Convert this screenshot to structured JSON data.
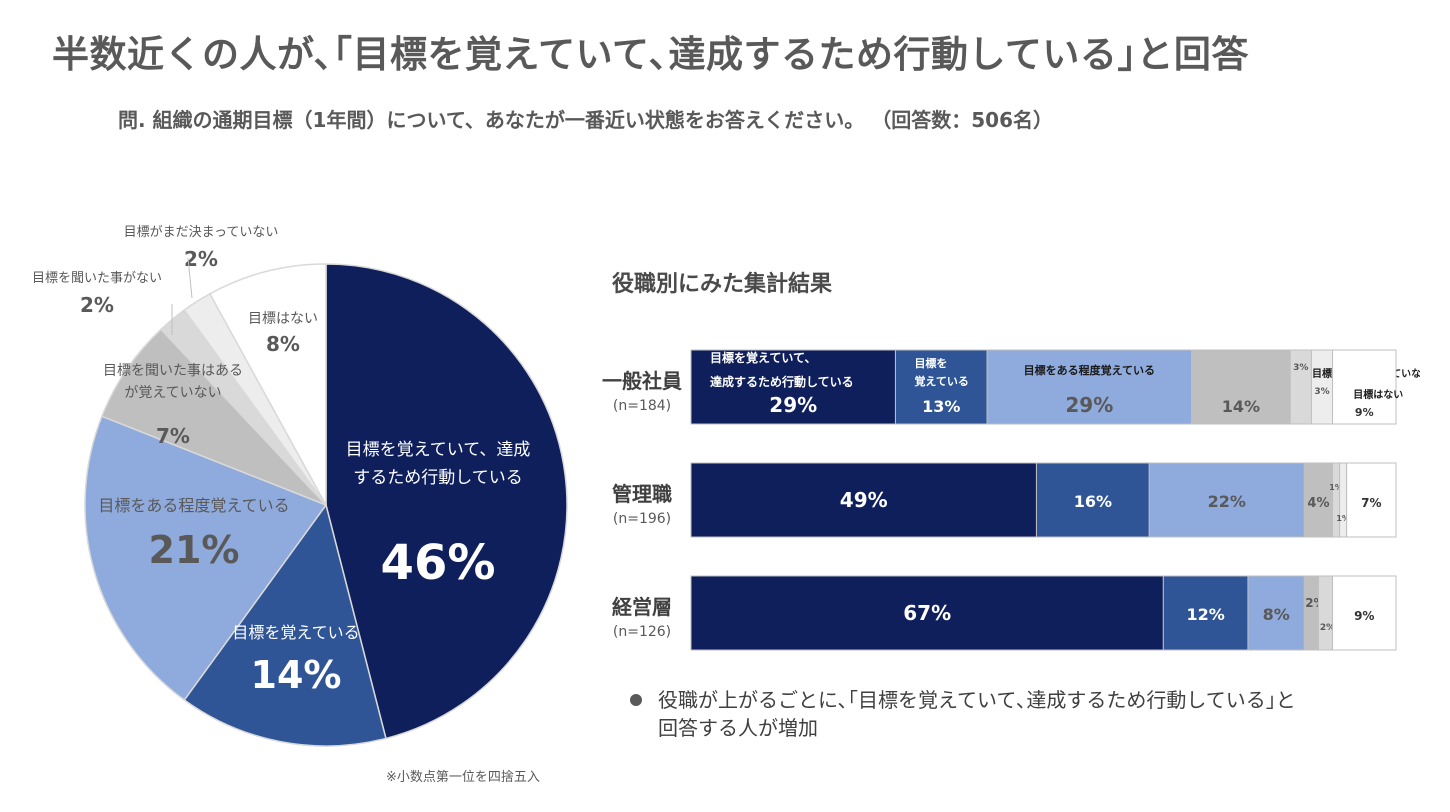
{
  "header": {
    "title": "半数近くの人が､｢目標を覚えていて､達成するため行動している｣と回答",
    "question": "問. 組織の通期目標（1年間）について、あなたが一番近い状態をお答えください。 （回答数：506名）"
  },
  "bar_section_title": "役職別にみた集計結果",
  "footnote": "※小数点第一位を四捨五入",
  "summary": {
    "line1": "役職が上がるごとに､｢目標を覚えていて､達成するため行動している｣と",
    "line2": "回答する人が増加"
  },
  "colors": {
    "dark_navy": "#0f1f5c",
    "mid_blue": "#2f5597",
    "light_blue": "#8faadc",
    "gray": "#bfbfbf",
    "light_gray": "#d9d9d9",
    "lighter_gray": "#ededed",
    "white": "#ffffff"
  },
  "chart_data": [
    {
      "type": "pie",
      "slices": [
        {
          "label": "目標を覚えていて、達成するため行動している",
          "label_lines": [
            "目標を覚えていて、達成",
            "するため行動している"
          ],
          "value": 46,
          "value_label": "46%",
          "color": "#0f1f5c",
          "text_color": "#ffffff"
        },
        {
          "label": "目標を覚えている",
          "label_lines": [
            "目標を覚えている"
          ],
          "value": 14,
          "value_label": "14%",
          "color": "#2f5597",
          "text_color": "#ffffff"
        },
        {
          "label": "目標をある程度覚えている",
          "label_lines": [
            "目標をある程度覚えている"
          ],
          "value": 21,
          "value_label": "21%",
          "color": "#8faadc",
          "text_color": "#595959"
        },
        {
          "label": "目標を聞いた事はあるが覚えていない",
          "label_lines": [
            "目標を聞いた事はある",
            "が覚えていない"
          ],
          "value": 7,
          "value_label": "7%",
          "color": "#bfbfbf",
          "text_color": "#595959"
        },
        {
          "label": "目標を聞いた事がない",
          "label_lines": [
            "目標を聞いた事がない"
          ],
          "value": 2,
          "value_label": "2%",
          "color": "#d9d9d9",
          "text_color": "#595959"
        },
        {
          "label": "目標がまだ決まっていない",
          "label_lines": [
            "目標がまだ決まっていない"
          ],
          "value": 2,
          "value_label": "2%",
          "color": "#ededed",
          "text_color": "#595959"
        },
        {
          "label": "目標はない",
          "label_lines": [
            "目標はない"
          ],
          "value": 8,
          "value_label": "8%",
          "color": "#ffffff",
          "text_color": "#595959"
        }
      ]
    },
    {
      "type": "bar",
      "orientation": "horizontal-stacked-100",
      "categories": [
        {
          "name": "一般社員",
          "n": "(n=184)"
        },
        {
          "name": "管理職",
          "n": "(n=196)"
        },
        {
          "name": "経営層",
          "n": "(n=126)"
        }
      ],
      "series": [
        {
          "name": "目標を覚えていて、達成するため行動している",
          "name_lines": [
            "目標を覚えていて、",
            "達成するため行動している"
          ],
          "values": [
            29,
            49,
            67
          ],
          "color": "#0f1f5c",
          "text_color": "#ffffff"
        },
        {
          "name": "目標を覚えている",
          "name_lines": [
            "目標を",
            "覚えている"
          ],
          "values": [
            13,
            16,
            12
          ],
          "color": "#2f5597",
          "text_color": "#ffffff"
        },
        {
          "name": "目標をある程度覚えている",
          "name_lines": [
            "目標をある程度覚えている"
          ],
          "values": [
            29,
            22,
            8
          ],
          "color": "#8faadc",
          "text_color": "#595959"
        },
        {
          "name": "目標を聞いた事はあるが覚えていない",
          "name_lines": [
            "目標を聞いた事はあるが",
            "覚えていない"
          ],
          "values": [
            14,
            4,
            2
          ],
          "color": "#bfbfbf",
          "text_color": "#595959"
        },
        {
          "name": "目標を聞いた事がない",
          "name_lines": [
            "目標を聞いた事がない"
          ],
          "values": [
            3,
            1,
            2
          ],
          "color": "#d9d9d9",
          "text_color": "#595959"
        },
        {
          "name": "目標がまだ決まっていない",
          "name_lines": [
            "目標がまだ決まっていない"
          ],
          "values": [
            3,
            1,
            0
          ],
          "color": "#ededed",
          "text_color": "#595959"
        },
        {
          "name": "目標はない",
          "name_lines": [
            "目標はない"
          ],
          "values": [
            9,
            7,
            9
          ],
          "color": "#ffffff",
          "text_color": "#333333"
        }
      ],
      "value_labels": [
        [
          "29%",
          "13%",
          "29%",
          "14%",
          "3%",
          "3%",
          "9%"
        ],
        [
          "49%",
          "16%",
          "22%",
          "4%",
          "1%",
          "1%",
          "7%"
        ],
        [
          "67%",
          "12%",
          "8%",
          "2%",
          "2%",
          "",
          "9%"
        ]
      ]
    }
  ]
}
